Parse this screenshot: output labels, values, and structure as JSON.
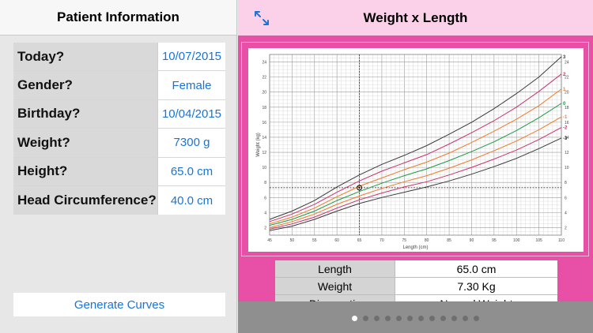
{
  "left": {
    "title": "Patient Information",
    "rows": [
      {
        "label": "Today?",
        "value": "10/07/2015"
      },
      {
        "label": "Gender?",
        "value": "Female"
      },
      {
        "label": "Birthday?",
        "value": "10/04/2015"
      },
      {
        "label": "Weight?",
        "value": "7300 g"
      },
      {
        "label": "Height?",
        "value": "65.0 cm"
      },
      {
        "label": "Head Circumference?",
        "value": "40.0 cm"
      }
    ],
    "generate_label": "Generate Curves"
  },
  "right": {
    "title": "Weight x Length",
    "info_rows": [
      {
        "label": "Length",
        "value": "65.0 cm"
      },
      {
        "label": "Weight",
        "value": "7.30 Kg"
      },
      {
        "label": "Diagnostic",
        "value": "Normal Weight"
      }
    ],
    "page_dots": 12,
    "active_dot": 0
  },
  "icons": {
    "expand": "expand-arrows-icon"
  },
  "colors": {
    "accent": "#1a73d9",
    "chart_bg": "#e850a8",
    "header_pink": "#fbd1ea"
  },
  "chart_data": {
    "type": "line",
    "xlabel": "Length (cm)",
    "ylabel": "Weight (kg)",
    "xlim": [
      45,
      110
    ],
    "ylim": [
      1,
      25
    ],
    "x_ticks": [
      45,
      50,
      55,
      60,
      65,
      70,
      75,
      80,
      85,
      90,
      95,
      100,
      105,
      110
    ],
    "y_ticks": [
      2,
      4,
      6,
      8,
      10,
      12,
      14,
      16,
      18,
      20,
      22,
      24
    ],
    "x": [
      45,
      50,
      55,
      60,
      65,
      70,
      75,
      80,
      85,
      90,
      95,
      100,
      105,
      110
    ],
    "series": [
      {
        "name": "3",
        "color": "#3a3a3a",
        "values": [
          3.1,
          4.2,
          5.6,
          7.4,
          9.0,
          10.4,
          11.6,
          12.9,
          14.4,
          16.0,
          17.8,
          19.8,
          22.0,
          24.7
        ]
      },
      {
        "name": "2",
        "color": "#c8326e",
        "values": [
          2.8,
          3.8,
          5.1,
          6.7,
          8.2,
          9.5,
          10.6,
          11.7,
          13.1,
          14.6,
          16.2,
          18.0,
          20.1,
          22.4
        ]
      },
      {
        "name": "1",
        "color": "#f07a28",
        "values": [
          2.5,
          3.4,
          4.6,
          6.1,
          7.5,
          8.6,
          9.7,
          10.7,
          11.9,
          13.3,
          14.8,
          16.4,
          18.2,
          20.4
        ]
      },
      {
        "name": "0",
        "color": "#1a9a44",
        "values": [
          2.3,
          3.1,
          4.2,
          5.6,
          6.8,
          7.9,
          8.9,
          9.8,
          10.9,
          12.1,
          13.4,
          14.9,
          16.6,
          18.5
        ]
      },
      {
        "name": "-1",
        "color": "#f07a28",
        "values": [
          2.0,
          2.8,
          3.8,
          5.1,
          6.2,
          7.2,
          8.1,
          8.9,
          9.9,
          11.0,
          12.2,
          13.5,
          15.0,
          16.7
        ]
      },
      {
        "name": "-2",
        "color": "#c8326e",
        "values": [
          1.8,
          2.5,
          3.4,
          4.6,
          5.7,
          6.6,
          7.4,
          8.1,
          9.0,
          10.0,
          11.1,
          12.3,
          13.7,
          15.3
        ]
      },
      {
        "name": "-3",
        "color": "#3a3a3a",
        "values": [
          1.6,
          2.2,
          3.1,
          4.2,
          5.2,
          6.0,
          6.7,
          7.4,
          8.2,
          9.1,
          10.1,
          11.2,
          12.5,
          13.9
        ]
      }
    ],
    "marker": {
      "x": 65.0,
      "y": 7.3
    },
    "grid": true,
    "legend": "right-edge"
  }
}
